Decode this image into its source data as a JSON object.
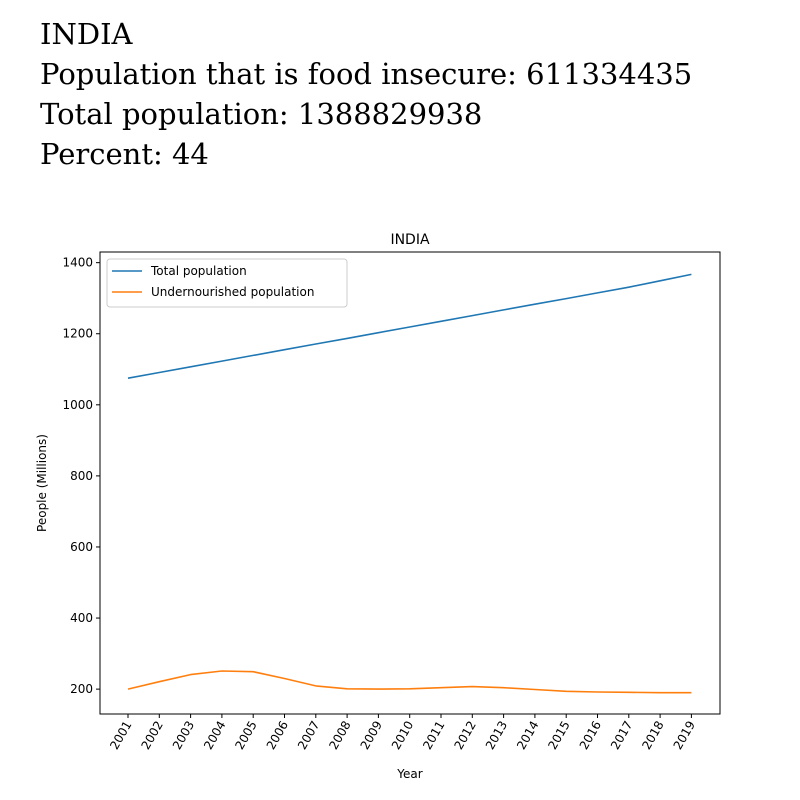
{
  "header": {
    "country": "INDIA",
    "food_insecure_line": "Population that is food insecure: 611334435",
    "total_population_line": "Total population: 1388829938",
    "percent_line": "Percent: 44"
  },
  "chart_data": {
    "type": "line",
    "title": "INDIA",
    "xlabel": "Year",
    "ylabel": "People (Millions)",
    "categories": [
      "2001",
      "2002",
      "2003",
      "2004",
      "2005",
      "2006",
      "2007",
      "2008",
      "2009",
      "2010",
      "2011",
      "2012",
      "2013",
      "2014",
      "2015",
      "2016",
      "2017",
      "2018",
      "2019"
    ],
    "ylim": [
      130,
      1430
    ],
    "yticks": [
      200,
      400,
      600,
      800,
      1000,
      1200,
      1400
    ],
    "legend_position": "top-left",
    "grid": false,
    "series": [
      {
        "name": "Total population",
        "color": "#1f77b4",
        "values": [
          1075,
          1091,
          1107,
          1123,
          1139,
          1155,
          1171,
          1187,
          1203,
          1219,
          1235,
          1251,
          1267,
          1283,
          1299,
          1315,
          1331,
          1349,
          1367
        ]
      },
      {
        "name": "Undernourished population",
        "color": "#ff7f0e",
        "values": [
          200,
          221,
          241,
          251,
          249,
          230,
          209,
          201,
          200,
          201,
          204,
          207,
          204,
          199,
          194,
          192,
          191,
          190,
          190
        ]
      }
    ]
  }
}
